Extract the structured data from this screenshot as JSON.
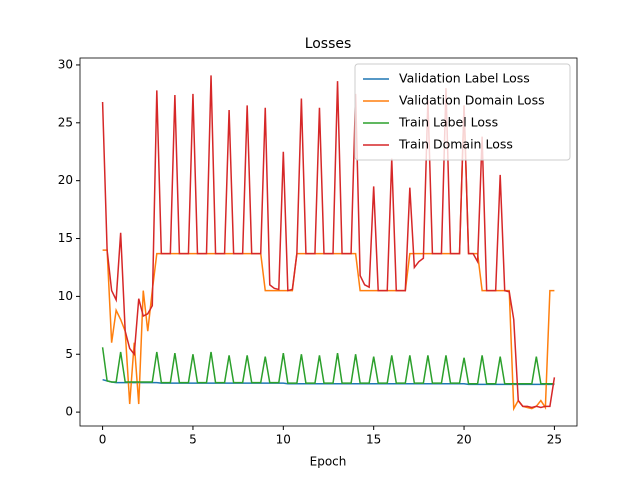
{
  "chart_data": {
    "type": "line",
    "title": "Losses",
    "x_label": "Epoch",
    "x": [
      0,
      0.25,
      0.5,
      0.75,
      1,
      1.25,
      1.5,
      1.75,
      2,
      2.25,
      2.5,
      2.75,
      3,
      3.25,
      3.5,
      3.75,
      4,
      4.25,
      4.5,
      4.75,
      5,
      5.25,
      5.5,
      5.75,
      6,
      6.25,
      6.5,
      6.75,
      7,
      7.25,
      7.5,
      7.75,
      8,
      8.25,
      8.5,
      8.75,
      9,
      9.25,
      9.5,
      9.75,
      10,
      10.25,
      10.5,
      10.75,
      11,
      11.25,
      11.5,
      11.75,
      12,
      12.25,
      12.5,
      12.75,
      13,
      13.25,
      13.5,
      13.75,
      14,
      14.25,
      14.5,
      14.75,
      15,
      15.25,
      15.5,
      15.75,
      16,
      16.25,
      16.5,
      16.75,
      17,
      17.25,
      17.5,
      17.75,
      18,
      18.25,
      18.5,
      18.75,
      19,
      19.25,
      19.5,
      19.75,
      20,
      20.25,
      20.5,
      20.75,
      21,
      21.25,
      21.5,
      21.75,
      22,
      22.25,
      22.5,
      22.75,
      23,
      23.25,
      23.5,
      23.75,
      24,
      24.25,
      24.5,
      24.75,
      25
    ],
    "series": [
      {
        "name": "Validation Label Loss",
        "color": "#1f77b4",
        "values": [
          2.8,
          2.7,
          2.6,
          2.55,
          2.55,
          2.55,
          2.55,
          2.55,
          2.55,
          2.55,
          2.55,
          2.55,
          2.55,
          2.5,
          2.5,
          2.5,
          2.5,
          2.5,
          2.5,
          2.5,
          2.5,
          2.5,
          2.5,
          2.5,
          2.5,
          2.5,
          2.5,
          2.5,
          2.5,
          2.5,
          2.5,
          2.5,
          2.5,
          2.5,
          2.5,
          2.5,
          2.5,
          2.5,
          2.5,
          2.5,
          2.5,
          2.45,
          2.45,
          2.45,
          2.45,
          2.45,
          2.45,
          2.45,
          2.45,
          2.45,
          2.45,
          2.45,
          2.45,
          2.45,
          2.45,
          2.45,
          2.45,
          2.45,
          2.45,
          2.45,
          2.45,
          2.45,
          2.45,
          2.45,
          2.45,
          2.45,
          2.45,
          2.45,
          2.45,
          2.45,
          2.45,
          2.45,
          2.45,
          2.45,
          2.45,
          2.45,
          2.45,
          2.45,
          2.45,
          2.45,
          2.45,
          2.4,
          2.4,
          2.4,
          2.4,
          2.4,
          2.4,
          2.4,
          2.4,
          2.4,
          2.4,
          2.4,
          2.4,
          2.4,
          2.4,
          2.4,
          2.4,
          2.4,
          2.4,
          2.4,
          2.4
        ]
      },
      {
        "name": "Validation Domain Loss",
        "color": "#ff7f0e",
        "values": [
          14,
          14,
          6,
          8.8,
          8,
          7,
          0.7,
          6,
          0.7,
          10.5,
          7,
          10.5,
          13.7,
          13.7,
          13.7,
          13.7,
          13.7,
          13.7,
          13.7,
          13.7,
          13.7,
          13.7,
          13.7,
          13.7,
          13.7,
          13.7,
          13.7,
          13.7,
          13.7,
          13.7,
          13.7,
          13.7,
          13.7,
          13.7,
          13.7,
          13.7,
          10.5,
          10.5,
          10.5,
          10.5,
          10.5,
          10.5,
          10.5,
          13.7,
          13.7,
          13.7,
          13.7,
          13.7,
          13.7,
          13.7,
          13.7,
          13.7,
          13.7,
          13.7,
          13.7,
          13.7,
          13.7,
          10.5,
          10.5,
          10.5,
          10.5,
          10.5,
          10.5,
          10.5,
          10.5,
          10.5,
          10.5,
          10.5,
          13.7,
          13.7,
          13.7,
          13.7,
          13.7,
          13.7,
          13.7,
          13.7,
          13.7,
          13.7,
          13.7,
          13.7,
          26.5,
          13.7,
          13.7,
          13.7,
          10.5,
          10.5,
          10.5,
          10.5,
          10.5,
          10.5,
          10.5,
          0.3,
          1.0,
          0.5,
          0.4,
          0.3,
          0.5,
          1.0,
          0.4,
          10.5,
          10.5
        ]
      },
      {
        "name": "Train Label Loss",
        "color": "#2ca02c",
        "values": [
          5.6,
          2.7,
          2.6,
          2.6,
          5.2,
          2.6,
          2.6,
          2.6,
          2.6,
          2.6,
          2.6,
          2.6,
          5.2,
          2.55,
          2.55,
          2.55,
          5.1,
          2.55,
          2.55,
          2.55,
          5.0,
          2.55,
          2.55,
          2.55,
          5.2,
          2.55,
          2.55,
          2.55,
          4.9,
          2.55,
          2.55,
          2.55,
          4.9,
          2.55,
          2.55,
          2.55,
          4.8,
          2.55,
          2.55,
          2.55,
          5.1,
          2.5,
          2.5,
          2.5,
          5.0,
          2.5,
          2.5,
          2.5,
          4.9,
          2.5,
          2.5,
          2.5,
          5.1,
          2.5,
          2.5,
          2.5,
          5.0,
          2.5,
          2.5,
          2.5,
          4.8,
          2.5,
          2.5,
          2.5,
          4.9,
          2.5,
          2.5,
          2.5,
          4.9,
          2.5,
          2.5,
          2.5,
          4.9,
          2.5,
          2.5,
          2.5,
          4.9,
          2.5,
          2.5,
          2.5,
          4.7,
          2.45,
          2.45,
          2.45,
          4.9,
          2.45,
          2.45,
          2.45,
          4.8,
          2.45,
          2.45,
          2.45,
          2.45,
          2.45,
          2.45,
          2.45,
          4.8,
          2.45,
          2.45,
          2.45,
          2.45
        ]
      },
      {
        "name": "Train Domain Loss",
        "color": "#d62728",
        "values": [
          26.8,
          14,
          10.5,
          9.7,
          15.5,
          7,
          5.5,
          5,
          9.8,
          8.3,
          8.5,
          9.2,
          27.8,
          13.7,
          13.7,
          13.7,
          27.4,
          13.7,
          13.7,
          13.7,
          27.5,
          13.7,
          13.7,
          13.7,
          29.1,
          13.7,
          13.7,
          13.7,
          26.1,
          13.7,
          13.7,
          13.7,
          26.5,
          13.7,
          13.7,
          13.7,
          26.3,
          11,
          10.7,
          10.6,
          22.5,
          10.5,
          10.6,
          13.7,
          27.1,
          13.7,
          13.7,
          13.7,
          26.3,
          13.7,
          13.7,
          13.7,
          28.6,
          13.7,
          13.7,
          13.7,
          27.5,
          11.8,
          11,
          10.8,
          19.5,
          10.5,
          10.5,
          10.5,
          21.9,
          10.5,
          10.5,
          10.5,
          19.4,
          12.5,
          13,
          13.3,
          27,
          13.7,
          13.7,
          13.7,
          28,
          13.7,
          13.7,
          13.7,
          26.5,
          13.7,
          13.7,
          13,
          23.8,
          10.5,
          10.5,
          10.5,
          20.5,
          10.5,
          10.4,
          8,
          1.0,
          0.5,
          0.5,
          0.4,
          0.5,
          0.4,
          0.5,
          0.5,
          3.0
        ]
      }
    ],
    "xlim": [
      -1.25,
      26.25
    ],
    "ylim": [
      -1.2,
      30.6
    ],
    "xticks": [
      0,
      5,
      10,
      15,
      20,
      25
    ],
    "yticks": [
      0,
      5,
      10,
      15,
      20,
      25,
      30
    ],
    "legend": "upper right"
  }
}
